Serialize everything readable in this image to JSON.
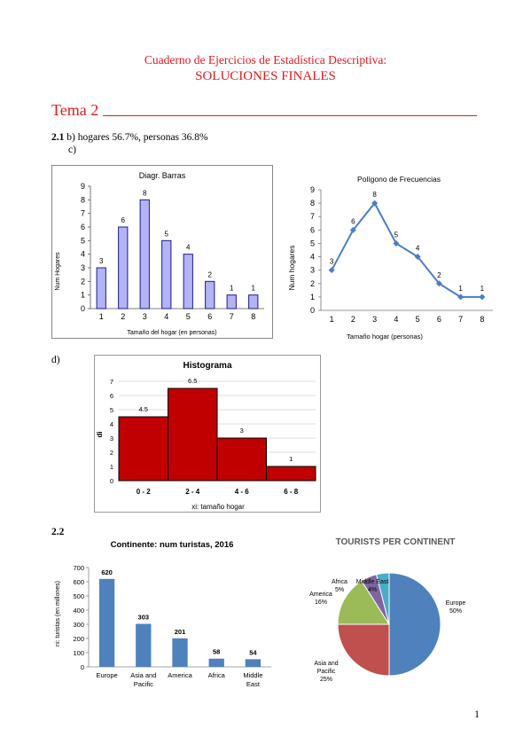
{
  "doc": {
    "header_line1": "Cuaderno de Ejercicios de Estadística Descriptiva:",
    "header_line2": "SOLUCIONES FINALES",
    "tema": "Tema 2",
    "q21_num": "2.1",
    "q21_text": "b) hogares 56.7%,  personas 36.8%",
    "q21_c": "c)",
    "q21_d": "d)",
    "q22_num": "2.2",
    "page_number": "1"
  },
  "colors": {
    "red": "#e0191e",
    "bar_purple_fill": "#b3b3f5",
    "bar_purple_stroke": "#1c1c8c",
    "line_blue": "#4a7fc4",
    "hist_fill": "#c00000",
    "col_blue": "#4f81bd",
    "pie_blue": "#4f81bd",
    "pie_red": "#c0504d",
    "pie_green": "#9bbb59",
    "pie_purple": "#8064a2",
    "pie_cyan": "#4bacc6"
  },
  "chart_data": [
    {
      "id": "barras",
      "type": "bar",
      "title": "Diagr. Barras",
      "xlabel": "Tamaño del hogar (en personas)",
      "ylabel": "Num Hogares",
      "categories": [
        "1",
        "2",
        "3",
        "4",
        "5",
        "6",
        "7",
        "8"
      ],
      "values": [
        3,
        6,
        8,
        5,
        4,
        2,
        1,
        1
      ],
      "ylim": [
        0,
        9
      ],
      "yticks": [
        "0",
        "1",
        "2",
        "3",
        "4",
        "5",
        "6",
        "7",
        "8",
        "9"
      ],
      "grid": false
    },
    {
      "id": "poligono",
      "type": "line",
      "title": "Polígono de Frecuencias",
      "xlabel": "Tamaño hogar (personas)",
      "ylabel": "Num hogares",
      "x": [
        "1",
        "2",
        "3",
        "4",
        "5",
        "6",
        "7",
        "8"
      ],
      "values": [
        3,
        6,
        8,
        5,
        4,
        2,
        1,
        1
      ],
      "ylim": [
        0,
        9
      ],
      "yticks": [
        "0",
        "1",
        "2",
        "3",
        "4",
        "5",
        "6",
        "7",
        "8",
        "9"
      ],
      "grid": false
    },
    {
      "id": "histograma",
      "type": "bar",
      "title": "Histograma",
      "xlabel": "xi: tamaño hogar",
      "ylabel": "di",
      "categories": [
        "0 - 2",
        "2 - 4",
        "4 - 6",
        "6 - 8"
      ],
      "values": [
        4.5,
        6.5,
        3,
        1
      ],
      "labels": [
        "4.5",
        "6.5",
        "3",
        "1"
      ],
      "ylim": [
        0,
        7
      ],
      "yticks": [
        "0",
        "1",
        "2",
        "3",
        "4",
        "5",
        "6",
        "7"
      ],
      "grid": true
    },
    {
      "id": "continente",
      "type": "bar",
      "title": "Continente: num turistas, 2016",
      "xlabel": "",
      "ylabel": "ni: turistas (en millones)",
      "categories": [
        [
          "Europe"
        ],
        [
          "Asia and",
          "Pacific"
        ],
        [
          "America"
        ],
        [
          "Africa"
        ],
        [
          "Middle",
          "East"
        ]
      ],
      "values": [
        620,
        303,
        201,
        58,
        54
      ],
      "ylim": [
        0,
        700
      ],
      "yticks": [
        "0",
        "100",
        "200",
        "300",
        "400",
        "500",
        "600",
        "700"
      ],
      "grid": false
    },
    {
      "id": "pie",
      "type": "pie",
      "title": "TOURISTS PER CONTINENT",
      "slices": [
        {
          "label": "Europe",
          "pct": "50%",
          "value": 50
        },
        {
          "label": "Asia and Pacific",
          "pct": "25%",
          "value": 25
        },
        {
          "label": "America",
          "pct": "16%",
          "value": 16
        },
        {
          "label": "Africa",
          "pct": "5%",
          "value": 5
        },
        {
          "label": "Middle East",
          "pct": "4%",
          "value": 4
        }
      ]
    }
  ]
}
